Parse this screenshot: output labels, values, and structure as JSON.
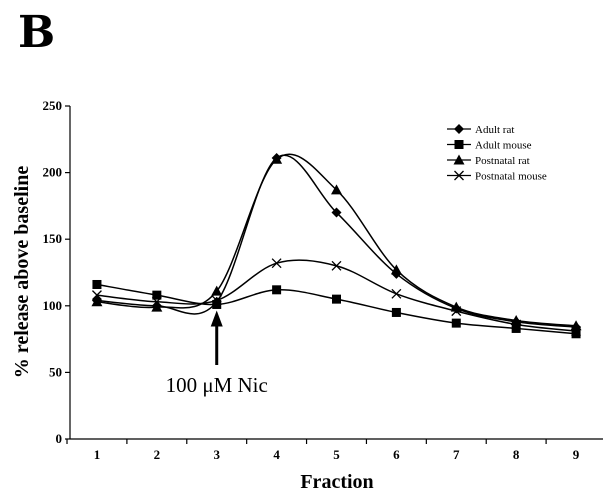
{
  "panel_label": "B",
  "chart_data": {
    "type": "line",
    "xlabel": "Fraction",
    "ylabel": "% release above baseline",
    "x": [
      1,
      2,
      3,
      4,
      5,
      6,
      7,
      8,
      9
    ],
    "xlim": [
      0.55,
      9.45
    ],
    "ylim": [
      0,
      250
    ],
    "yticks": [
      0,
      50,
      100,
      150,
      200,
      250
    ],
    "grid": false,
    "legend_position": "top-right",
    "series": [
      {
        "name": "Adult rat",
        "marker": "diamond",
        "values": [
          104,
          100,
          103,
          211,
          170,
          124,
          98,
          88,
          84
        ]
      },
      {
        "name": "Adult mouse",
        "marker": "square",
        "values": [
          116,
          108,
          101,
          112,
          105,
          95,
          87,
          83,
          79
        ]
      },
      {
        "name": "Postnatal rat",
        "marker": "triangle",
        "values": [
          103,
          99,
          111,
          210,
          187,
          127,
          99,
          89,
          85
        ]
      },
      {
        "name": "Postnatal mouse",
        "marker": "x",
        "values": [
          108,
          103,
          104,
          132,
          130,
          109,
          96,
          86,
          81
        ]
      }
    ],
    "annotation": {
      "text": "100 μM Nic",
      "x": 3,
      "y_tip": 101
    }
  }
}
